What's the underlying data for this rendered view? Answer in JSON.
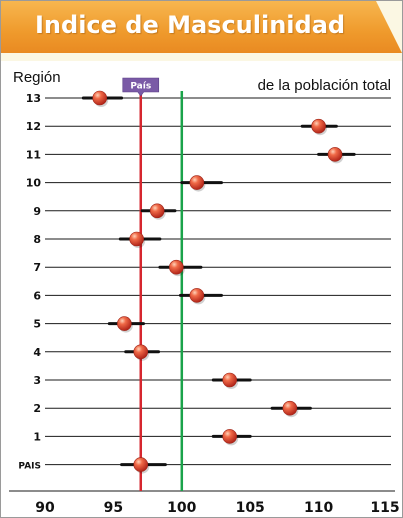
{
  "header": {
    "title": "Indice de  Masculinidad"
  },
  "chart_data": {
    "type": "scatter",
    "title": "Indice de  Masculinidad",
    "ylabel": "Región",
    "subtitle": "de la población total",
    "categories": [
      "13",
      "12",
      "11",
      "10",
      "9",
      "8",
      "7",
      "6",
      "5",
      "4",
      "3",
      "2",
      "1",
      "PAIS"
    ],
    "values": [
      94.0,
      110.0,
      111.2,
      101.1,
      98.2,
      96.7,
      99.6,
      101.1,
      95.8,
      97.0,
      103.5,
      107.9,
      103.5,
      97.0
    ],
    "intervals": [
      [
        92.8,
        95.6
      ],
      [
        108.8,
        111.3
      ],
      [
        110.0,
        112.6
      ],
      [
        100.0,
        102.9
      ],
      [
        97.1,
        99.5
      ],
      [
        95.5,
        98.4
      ],
      [
        98.4,
        101.4
      ],
      [
        99.9,
        102.9
      ],
      [
        94.7,
        97.2
      ],
      [
        95.9,
        98.3
      ],
      [
        102.3,
        105.0
      ],
      [
        106.6,
        109.4
      ],
      [
        102.3,
        105.0
      ],
      [
        95.6,
        98.8
      ]
    ],
    "xlim": [
      90,
      115
    ],
    "xticks": [
      90,
      95,
      100,
      105,
      110,
      115
    ],
    "reference_lines": [
      {
        "label": "País",
        "value": 97.0,
        "color": "#d6262e"
      },
      {
        "value": 100,
        "color": "#1aa34a"
      }
    ],
    "point_color": "#e8503a",
    "grid": "horizontal lines per region"
  }
}
